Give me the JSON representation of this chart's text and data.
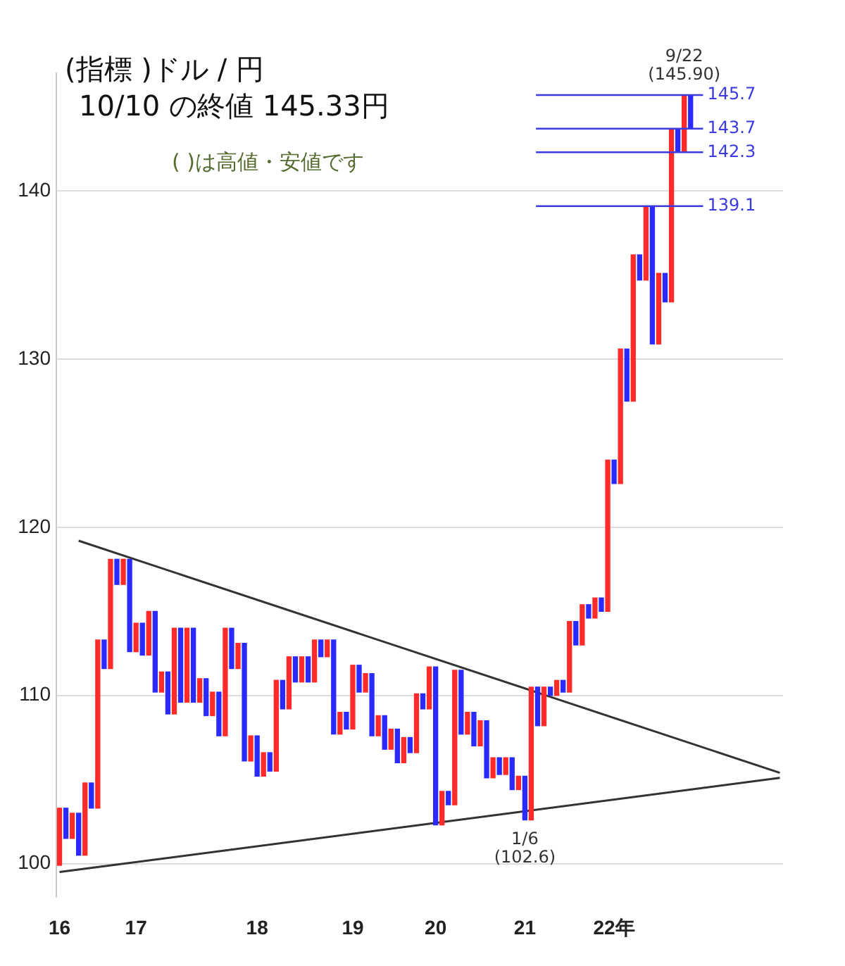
{
  "chart_data": {
    "type": "bar",
    "title": "(指標 )ドル / 円",
    "subtitle": "10/10 の終値 145.33円",
    "annotations": [
      "( )は高値・安値です",
      {
        "text": "9/22\n(145.90)",
        "y": 145.9
      },
      {
        "text": "1/6\n(102.6)",
        "y": 102.6
      }
    ],
    "categories": [
      "16",
      null,
      null,
      null,
      null,
      null,
      null,
      null,
      null,
      null,
      null,
      null,
      "17",
      null,
      null,
      null,
      null,
      null,
      null,
      null,
      null,
      null,
      null,
      null,
      null,
      null,
      null,
      null,
      null,
      null,
      null,
      "18",
      null,
      null,
      null,
      null,
      null,
      null,
      null,
      null,
      null,
      null,
      null,
      null,
      null,
      null,
      "19",
      null,
      null,
      null,
      null,
      null,
      null,
      null,
      null,
      null,
      null,
      null,
      null,
      "20",
      null,
      null,
      null,
      null,
      null,
      null,
      null,
      null,
      null,
      null,
      null,
      null,
      null,
      "21",
      null,
      null,
      null,
      null,
      null,
      null,
      null,
      null,
      null,
      null,
      null,
      null,
      null,
      "22年",
      null,
      null,
      null,
      null,
      null,
      null,
      null,
      null,
      null,
      null,
      null,
      null,
      null,
      null,
      null,
      null,
      null,
      null,
      null,
      null,
      null,
      null,
      null,
      null,
      null,
      null
    ],
    "series": [
      {
        "colors": [
          "#ff2a2a",
          "#2a2aff",
          "#ff2a2a",
          "#2a2aff",
          "#ff2a2a",
          "#2a2aff",
          "#ff2a2a",
          "#2a2aff",
          "#ff2a2a",
          "#2a2aff",
          "#ff2a2a",
          "#2a2aff",
          "#ff2a2a",
          "#2a2aff",
          "#ff2a2a",
          "#2a2aff",
          "#ff2a2a",
          "#2a2aff",
          "#ff2a2a",
          "#2a2aff",
          "#ff2a2a",
          "#2a2aff",
          "#ff2a2a",
          "#2a2aff",
          "#ff2a2a",
          "#2a2aff",
          "#ff2a2a",
          "#2a2aff",
          "#ff2a2a",
          "#2a2aff",
          "#ff2a2a",
          "#2a2aff",
          "#ff2a2a",
          "#2a2aff",
          "#ff2a2a",
          "#2a2aff",
          "#ff2a2a",
          "#2a2aff",
          "#ff2a2a",
          "#2a2aff",
          "#ff2a2a",
          "#2a2aff",
          "#ff2a2a",
          "#2a2aff",
          "#ff2a2a",
          "#2a2aff",
          "#ff2a2a",
          "#2a2aff",
          "#ff2a2a",
          "#2a2aff",
          "#ff2a2a",
          "#2a2aff",
          "#ff2a2a",
          "#2a2aff",
          "#ff2a2a",
          "#2a2aff",
          "#ff2a2a",
          "#2a2aff",
          "#ff2a2a",
          "#2a2aff",
          "#ff2a2a",
          "#2a2aff",
          "#ff2a2a",
          "#2a2aff",
          "#ff2a2a",
          "#2a2aff",
          "#ff2a2a",
          "#2a2aff",
          "#ff2a2a",
          "#2a2aff",
          "#ff2a2a",
          "#2a2aff",
          "#ff2a2a",
          "#2a2aff",
          "#ff2a2a",
          "#2a2aff",
          "#ff2a2a",
          "#2a2aff",
          "#ff2a2a",
          "#2a2aff",
          "#ff2a2a",
          "#2a2aff",
          "#ff2a2a",
          "#2a2aff",
          "#ff2a2a",
          "#2a2aff",
          "#ff2a2a",
          "#2a2aff",
          "#ff2a2a",
          "#2a2aff",
          "#ff2a2a",
          "#2a2aff",
          "#ff2a2a",
          "#2a2aff",
          "#ff2a2a",
          "#2a2aff",
          "#ff2a2a",
          "#2a2aff",
          "#ff2a2a",
          "#2a2aff",
          null,
          null,
          null,
          null,
          null,
          null,
          null,
          null,
          null,
          null,
          null,
          null,
          null,
          null
        ],
        "base": [
          99.9,
          103.3,
          101.5,
          103.0,
          100.5,
          104.8,
          103.3,
          113.3,
          111.6,
          118.1,
          116.6,
          118.1,
          112.6,
          114.3,
          112.4,
          115.0,
          110.2,
          111.4,
          108.9,
          114.0,
          109.6,
          114.0,
          109.6,
          111.0,
          108.8,
          110.2,
          107.6,
          114.0,
          111.6,
          113.1,
          106.1,
          107.6,
          105.2,
          106.6,
          105.5,
          110.9,
          109.2,
          112.3,
          110.8,
          112.3,
          110.8,
          113.3,
          112.3,
          113.3,
          107.7,
          109.0,
          108.0,
          111.8,
          110.2,
          111.3,
          107.6,
          108.8,
          106.8,
          108.0,
          106.0,
          107.5,
          106.6,
          110.1,
          109.2,
          111.7,
          102.3,
          104.3,
          103.5,
          111.5,
          107.7,
          109.0,
          107.0,
          108.5,
          105.1,
          106.3,
          105.3,
          106.3,
          104.4,
          105.2,
          102.6,
          110.5,
          108.2,
          110.5,
          110.0,
          110.9,
          110.2,
          114.4,
          113.0,
          115.4,
          114.6,
          115.8,
          115.0,
          124.0,
          122.6,
          130.6,
          127.5,
          136.2,
          134.7,
          139.1,
          130.9,
          135.1,
          133.4,
          143.7,
          142.3,
          145.7,
          null,
          null,
          null,
          null,
          null,
          null,
          null,
          null,
          null,
          null,
          null,
          null,
          null,
          null
        ],
        "values": [
          3.4,
          -1.8,
          1.5,
          -2.5,
          4.3,
          -1.5,
          10.0,
          -1.7,
          6.5,
          -1.5,
          1.5,
          -5.5,
          1.7,
          -1.9,
          2.6,
          -4.8,
          1.2,
          -2.5,
          5.1,
          -4.4,
          4.4,
          -4.4,
          1.4,
          -2.2,
          1.4,
          -2.6,
          6.4,
          -2.4,
          1.5,
          -7.0,
          1.5,
          -2.4,
          1.4,
          -1.1,
          5.4,
          -1.7,
          3.1,
          -1.5,
          1.5,
          -1.5,
          2.5,
          -1.0,
          1.0,
          -5.6,
          1.3,
          -1.0,
          3.8,
          -1.6,
          1.1,
          -3.7,
          1.2,
          -2.0,
          1.2,
          -2.0,
          1.5,
          -0.9,
          3.5,
          -0.9,
          2.5,
          -9.4,
          2.0,
          -0.8,
          8.0,
          -3.8,
          1.3,
          -2.0,
          1.5,
          -3.4,
          1.2,
          -1.0,
          1.0,
          -1.9,
          0.8,
          -2.6,
          7.9,
          -2.3,
          2.3,
          -0.5,
          0.9,
          -0.7,
          4.2,
          -1.4,
          2.4,
          -0.8,
          1.2,
          -0.8,
          9.0,
          -1.4,
          8.0,
          -3.1,
          8.7,
          -1.5,
          4.4,
          -8.2,
          4.2,
          -1.7,
          10.3,
          -1.4,
          3.4,
          -2.0,
          null,
          null,
          null,
          null,
          null,
          null,
          null,
          null,
          null,
          null,
          null,
          null,
          null,
          null
        ]
      },
      {
        "type": "line",
        "color": "#333333",
        "values": [
          null,
          null,
          null,
          119.2,
          null,
          null,
          null,
          null,
          null,
          null,
          null,
          null,
          null,
          null,
          null,
          null,
          null,
          null,
          null,
          null,
          null,
          null,
          null,
          null,
          null,
          null,
          null,
          null,
          null,
          null,
          null,
          null,
          null,
          null,
          null,
          null,
          null,
          null,
          null,
          null,
          null,
          null,
          null,
          null,
          null,
          null,
          null,
          null,
          null,
          null,
          null,
          null,
          null,
          null,
          null,
          null,
          null,
          null,
          null,
          null,
          null,
          null,
          null,
          null,
          null,
          null,
          null,
          null,
          null,
          null,
          null,
          null,
          null,
          null,
          null,
          null,
          null,
          null,
          null,
          null,
          null,
          null,
          null,
          null,
          null,
          null,
          null,
          null,
          null,
          null,
          null,
          null,
          null,
          null,
          null,
          null,
          null,
          null,
          null,
          null,
          null,
          null,
          null,
          null,
          null,
          null,
          null,
          null,
          null,
          null,
          null,
          null,
          null,
          105.4
        ]
      },
      {
        "type": "line",
        "color": "#333333",
        "values": [
          99.5,
          null,
          null,
          null,
          null,
          null,
          null,
          null,
          null,
          null,
          null,
          null,
          null,
          null,
          null,
          null,
          null,
          null,
          null,
          null,
          null,
          null,
          null,
          null,
          null,
          null,
          null,
          null,
          null,
          null,
          null,
          null,
          null,
          null,
          null,
          null,
          null,
          null,
          null,
          null,
          null,
          null,
          null,
          null,
          null,
          null,
          null,
          null,
          null,
          null,
          null,
          null,
          null,
          null,
          null,
          null,
          null,
          null,
          null,
          null,
          null,
          null,
          null,
          null,
          null,
          null,
          null,
          null,
          null,
          null,
          null,
          null,
          null,
          null,
          null,
          null,
          null,
          null,
          null,
          null,
          null,
          null,
          null,
          null,
          null,
          null,
          null,
          null,
          null,
          null,
          null,
          null,
          null,
          null,
          null,
          null,
          null,
          null,
          null,
          null,
          null,
          null,
          null,
          null,
          null,
          null,
          null,
          null,
          null,
          null,
          null,
          null,
          null,
          105.1
        ]
      }
    ],
    "ref_lines": [
      {
        "axis": "y",
        "value": 145.7,
        "label": "145.7",
        "color": "#3a3ae0"
      },
      {
        "axis": "y",
        "value": 143.7,
        "label": "143.7",
        "color": "#3a3ae0"
      },
      {
        "axis": "y",
        "value": 142.3,
        "label": "142.3",
        "color": "#3a3ae0"
      },
      {
        "axis": "y",
        "value": 139.1,
        "label": "139.1",
        "color": "#3a3ae0"
      }
    ],
    "ylim": [
      98,
      147
    ],
    "yticks": [
      100,
      110,
      120,
      130,
      140
    ],
    "grid": "y",
    "legend": false
  }
}
